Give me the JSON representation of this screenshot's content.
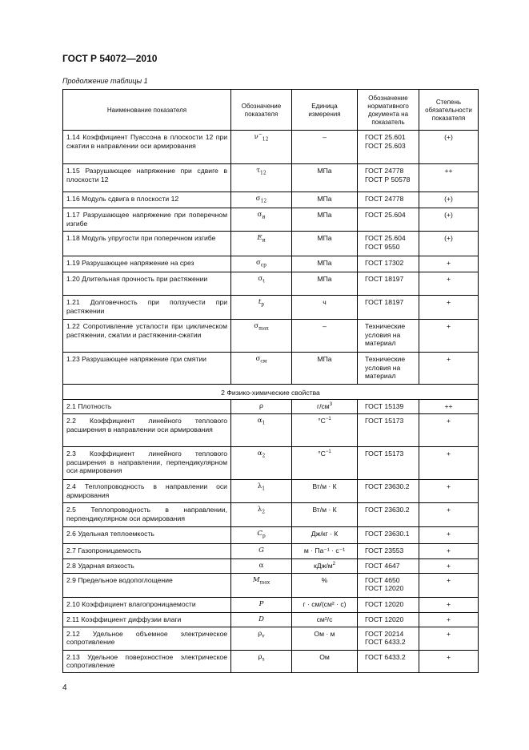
{
  "header": {
    "doc_id": "ГОСТ Р 54072—2010",
    "caption": "Продолжение таблицы 1"
  },
  "table": {
    "columns": [
      "Наименование показателя",
      "Обозначение показателя",
      "Единица измерения",
      "Обозначение нормативного документа на показатель",
      "Степень обязательности показателя"
    ],
    "rows": [
      {
        "name": "1.14  Коэффициент Пуассона в плоскости 12 при сжатии в направлении оси армирования",
        "sym": "ν",
        "sub": "12",
        "sup": "−",
        "unit": "–",
        "docs": [
          "ГОСТ 25.601",
          "ГОСТ 25.603"
        ],
        "req": "(+)",
        "h": 42
      },
      {
        "name": "1.15 Разрушающее напряжение при сдвиге в плоскости 12",
        "sym": "τ",
        "sub": "12",
        "unit": "МПа",
        "docs": [
          "ГОСТ 24778",
          "ГОСТ Р 50578"
        ],
        "req": "++",
        "h": 35
      },
      {
        "name": "1.16  Модуль сдвига в плоскости 12",
        "sym": "σ",
        "sub": "12",
        "unit": "МПа",
        "docs": [
          "ГОСТ 24778"
        ],
        "req": "(+)",
        "h": 19
      },
      {
        "name": "1.17  Разрушающее напряжение при поперечном изгибе",
        "sym": "σ",
        "sub": "и",
        "unit": "МПа",
        "docs": [
          "ГОСТ 25.604"
        ],
        "req": "(+)",
        "h": 29
      },
      {
        "name": "1.18  Модуль упругости при поперечном изгибе",
        "sym": "E",
        "italic": true,
        "sub": "и",
        "unit": "МПа",
        "docs": [
          "ГОСТ 25.604",
          "ГОСТ 9550"
        ],
        "req": "(+)",
        "h": 31
      },
      {
        "name": "1.19  Разрушающее напряжение на срез",
        "sym": "σ",
        "sub": "ср",
        "unit": "МПа",
        "docs": [
          "ГОСТ 17302"
        ],
        "req": "+",
        "h": 19
      },
      {
        "name": "1.20  Длительная прочность при растяжении",
        "sym": "σ",
        "sub": "t",
        "unit": "МПа",
        "docs": [
          "ГОСТ 18197"
        ],
        "req": "+",
        "h": 29
      },
      {
        "name": "1.21  Долговечность при ползучести при растяжении",
        "sym": "t",
        "italic": true,
        "sub": "р",
        "unit": "ч",
        "docs": [
          "ГОСТ 18197"
        ],
        "req": "+",
        "h": 30
      },
      {
        "name": "1.22  Сопротивление усталости при циклическом растяжении, сжатии и растяжении-сжатии",
        "sym": "σ",
        "sub": "max",
        "unit": "–",
        "docs": [
          "Технические условия на материал"
        ],
        "req": "+",
        "h": 41
      },
      {
        "name": "1.23  Разрушающее напряжение при смятии",
        "sym": "σ",
        "sub": "см",
        "unit": "МПа",
        "docs": [
          "Технические условия на материал"
        ],
        "req": "+",
        "h": 40
      },
      {
        "section": "2  Физико-химические свойства",
        "h": 19
      },
      {
        "name": "2.1  Плотность",
        "sym": "ρ",
        "unit": "г/см",
        "unit_sup": "3",
        "docs": [
          "ГОСТ 15139"
        ],
        "req": "++",
        "h": 18
      },
      {
        "name": "2.2  Коэффициент линейного теплового расширения в направлении оси армирования",
        "sym": "α",
        "sub": "1",
        "unit": "°С",
        "unit_sup": "−1",
        "docs": [
          "ГОСТ 15173"
        ],
        "req": "+",
        "h": 41
      },
      {
        "name": "2.3  Коэффициент линейного теплового расширения в направлении, перпендикулярном оси армирования",
        "sym": "α",
        "sub": "2",
        "unit": "°С",
        "unit_sup": "−1",
        "docs": [
          "ГОСТ 15173"
        ],
        "req": "+",
        "h": 41
      },
      {
        "name": "2.4  Теплопроводность в направлении оси армирования",
        "sym": "λ",
        "sub": "1",
        "unit": "Вт/м · К",
        "docs": [
          "ГОСТ 23630.2"
        ],
        "req": "+",
        "h": 29
      },
      {
        "name": "2.5  Теплопроводность в направлении, перпендикулярном оси армирования",
        "sym": "λ",
        "sub": "2",
        "unit": "Вт/м · К",
        "docs": [
          "ГОСТ 23630.2"
        ],
        "req": "+",
        "h": 30
      },
      {
        "name": "2.6  Удельная теплоемкость",
        "sym": "C",
        "italic": true,
        "sub": "р",
        "unit": "Дж/кг · К",
        "docs": [
          "ГОСТ 23630.1"
        ],
        "req": "+",
        "h": 18
      },
      {
        "name": "2.7  Газопроницаемость",
        "sym": "G",
        "italic": true,
        "unit": "м · Па⁻¹ · с⁻¹",
        "docs": [
          "ГОСТ 23553"
        ],
        "req": "+",
        "h": 19
      },
      {
        "name": "2.8  Ударная вязкость",
        "sym": "α",
        "unit": "кДж/м",
        "unit_sup": "2",
        "docs": [
          "ГОСТ 4647"
        ],
        "req": "+",
        "h": 18
      },
      {
        "name": "2.9  Предельное водопоглощение",
        "sym": "M",
        "italic": true,
        "sub": "max",
        "unit": "%",
        "docs": [
          "ГОСТ 4650",
          "ГОСТ 12020"
        ],
        "req": "+",
        "h": 30
      },
      {
        "name": "2.10  Коэффициент влагопроницаемости",
        "sym": "P",
        "italic": true,
        "unit": "г · см/(см² · с)",
        "docs": [
          "ГОСТ 12020"
        ],
        "req": "+",
        "h": 19
      },
      {
        "name": "2.11  Коэффициент диффузии влаги",
        "sym": "D",
        "italic": true,
        "unit": "см²/с",
        "docs": [
          "ГОСТ 12020"
        ],
        "req": "+",
        "h": 18
      },
      {
        "name": "2.12  Удельное объемное электрическое сопротивление",
        "sym": "ρ",
        "sub": "v",
        "unit": "Ом · м",
        "docs": [
          "ГОСТ 20214",
          "ГОСТ 6433.2"
        ],
        "req": "+",
        "h": 29
      },
      {
        "name": "2.13  Удельное поверхностное электрическое сопротивление",
        "sym": "ρ",
        "sub": "s",
        "unit": "Ом",
        "docs": [
          "ГОСТ 6433.2"
        ],
        "req": "+",
        "h": 28
      }
    ]
  },
  "footer": {
    "page_number": "4"
  }
}
